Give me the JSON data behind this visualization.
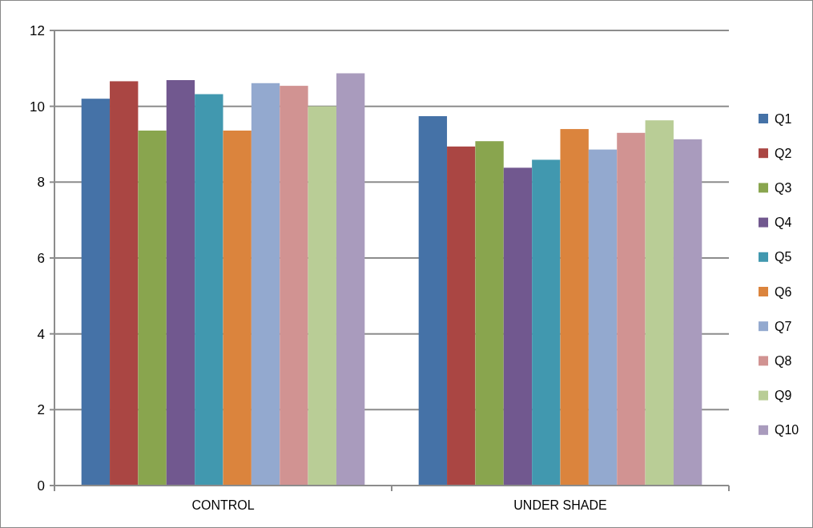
{
  "chart_data": {
    "type": "bar",
    "categories": [
      "CONTROL",
      "UNDER SHADE"
    ],
    "series": [
      {
        "name": "Q1",
        "color": "#4572a7",
        "values": [
          10.2,
          9.74
        ]
      },
      {
        "name": "Q2",
        "color": "#aa4643",
        "values": [
          10.66,
          8.94
        ]
      },
      {
        "name": "Q3",
        "color": "#89a54e",
        "values": [
          9.36,
          9.08
        ]
      },
      {
        "name": "Q4",
        "color": "#71588f",
        "values": [
          10.69,
          8.38
        ]
      },
      {
        "name": "Q5",
        "color": "#4198af",
        "values": [
          10.32,
          8.59
        ]
      },
      {
        "name": "Q6",
        "color": "#db843d",
        "values": [
          9.36,
          9.4
        ]
      },
      {
        "name": "Q7",
        "color": "#93a9cf",
        "values": [
          10.61,
          8.86
        ]
      },
      {
        "name": "Q8",
        "color": "#d19392",
        "values": [
          10.54,
          9.3
        ]
      },
      {
        "name": "Q9",
        "color": "#b9cd96",
        "values": [
          10.0,
          9.63
        ]
      },
      {
        "name": "Q10",
        "color": "#a99bbd",
        "values": [
          10.87,
          9.13
        ]
      }
    ],
    "ylim": [
      0,
      12
    ],
    "yticks": [
      0,
      2,
      4,
      6,
      8,
      10,
      12
    ],
    "grid": "y",
    "legend": "right"
  }
}
